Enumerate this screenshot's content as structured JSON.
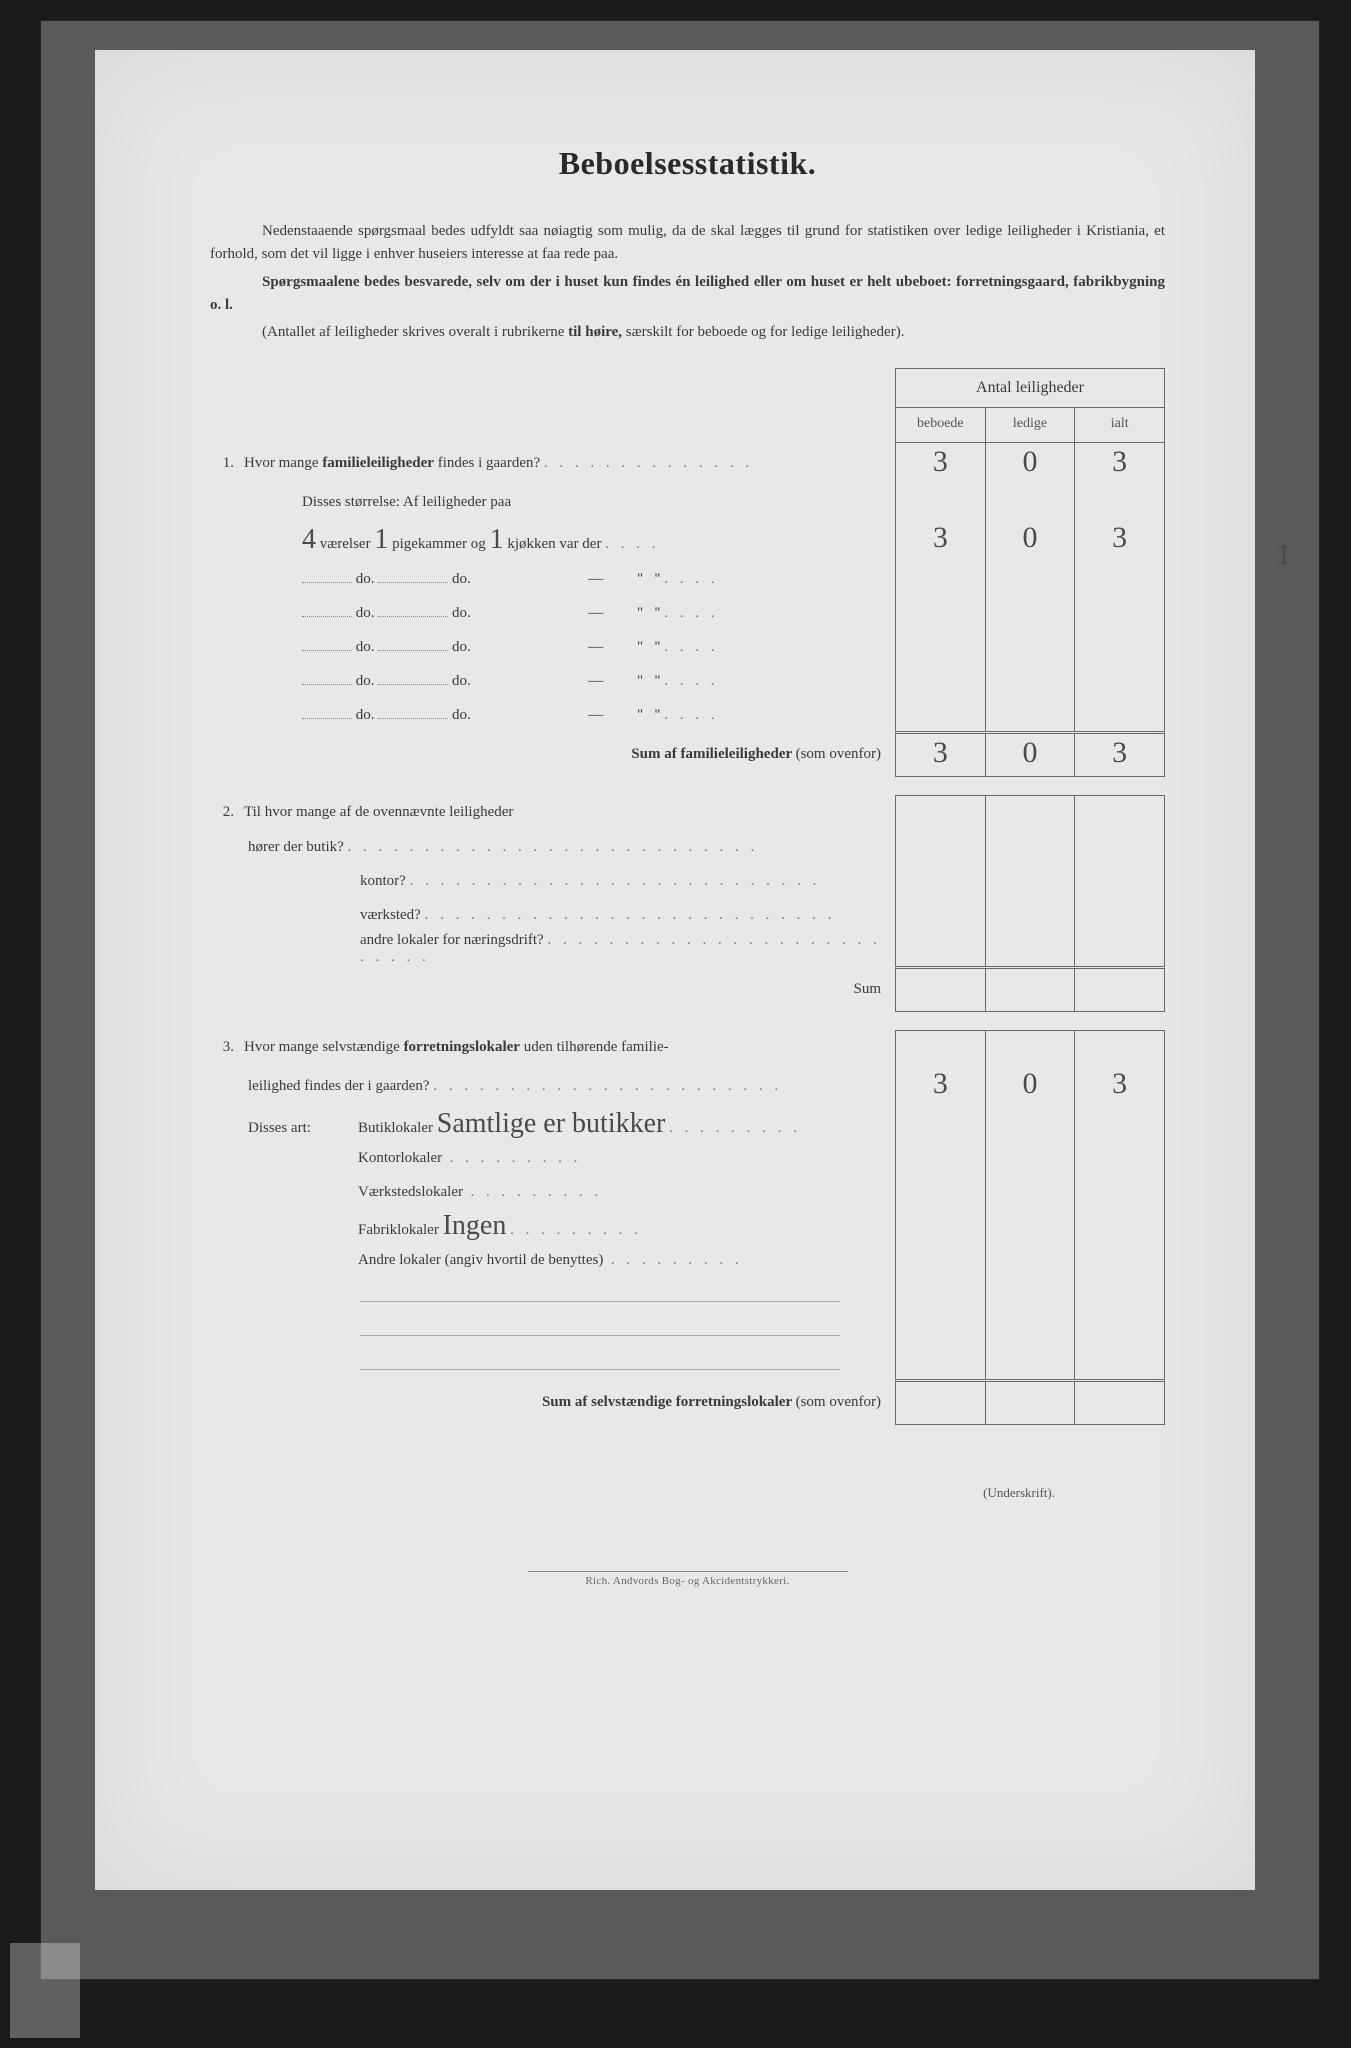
{
  "title": "Beboelsesstatistik.",
  "intro": {
    "p1a": "Nedenstaaende spørgsmaal bedes udfyldt saa nøiagtig som mulig, da de skal lægges til grund for statistiken over  ledige leiligheder i Kristiania, et forhold, som det vil ligge i enhver huseiers interesse at faa rede paa.",
    "p2a": "Spørgsmaalene bedes besvarede, selv om der i huset kun findes én leilighed eller om huset er helt ubeboet: forretningsgaard, fabrikbygning o. l.",
    "p3a": "(Antallet af leiligheder skrives overalt i rubrikerne ",
    "p3b": "til høire,",
    "p3c": " særskilt for beboede og for ledige leiligheder)."
  },
  "table_header": {
    "title": "Antal leiligheder",
    "cols": [
      "beboede",
      "ledige",
      "ialt"
    ]
  },
  "q1": {
    "num": "1.",
    "text": "Hvor mange ",
    "bold": "familieleiligheder",
    "text2": " findes i gaarden?",
    "vals": [
      "3",
      "0",
      "3"
    ],
    "size_label": "Disses størrelse:   Af leiligheder paa",
    "row1": {
      "vaer": "4",
      "pige": "1",
      "kjok": "1",
      "vals": [
        "3",
        "0",
        "3"
      ]
    },
    "do_rows": [
      {
        "v": "",
        "p": "",
        "k": "—",
        "vals": [
          "",
          "",
          ""
        ]
      },
      {
        "v": "",
        "p": "",
        "k": "—",
        "vals": [
          "",
          "",
          ""
        ]
      },
      {
        "v": "",
        "p": "",
        "k": "—",
        "vals": [
          "",
          "",
          ""
        ]
      },
      {
        "v": "",
        "p": "",
        "k": "—",
        "vals": [
          "",
          "",
          ""
        ]
      },
      {
        "v": "",
        "p": "",
        "k": "—",
        "vals": [
          "",
          "",
          ""
        ]
      }
    ],
    "sum_label": "Sum af familieleiligheder ",
    "sum_paren": "(som ovenfor)",
    "sum_vals": [
      "3",
      "0",
      "3"
    ]
  },
  "q2": {
    "num": "2.",
    "text": "Til hvor mange af de ovennævnte leiligheder",
    "rows": [
      {
        "label": "hører der butik?",
        "vals": [
          "",
          "",
          ""
        ]
      },
      {
        "label": "kontor?",
        "vals": [
          "",
          "",
          ""
        ]
      },
      {
        "label": "værksted?",
        "vals": [
          "",
          "",
          ""
        ]
      },
      {
        "label": "andre lokaler for næringsdrift?",
        "vals": [
          "",
          "",
          ""
        ]
      }
    ],
    "sum_label": "Sum",
    "sum_vals": [
      "",
      "",
      ""
    ]
  },
  "q3": {
    "num": "3.",
    "text1": "Hvor mange selvstændige ",
    "bold": "forretningslokaler",
    "text2": " uden tilhørende familie-",
    "text3": "leilighed findes der i gaarden?",
    "vals": [
      "3",
      "0",
      "3"
    ],
    "art_label": "Disses art:",
    "rows": [
      {
        "label": "Butiklokaler",
        "hand": "Samtlige er butikker",
        "vals": [
          "",
          "",
          ""
        ]
      },
      {
        "label": "Kontorlokaler",
        "hand": "",
        "vals": [
          "",
          "",
          ""
        ]
      },
      {
        "label": "Værkstedslokaler",
        "hand": "",
        "vals": [
          "",
          "",
          ""
        ]
      },
      {
        "label": "Fabriklokaler",
        "hand": "Ingen",
        "vals": [
          "",
          "",
          ""
        ]
      },
      {
        "label": "Andre lokaler (angiv hvortil de benyttes)",
        "hand": "",
        "vals": [
          "",
          "",
          ""
        ]
      }
    ],
    "extra_blank_rows": 3,
    "sum_label": "Sum af selvstændige forretningslokaler ",
    "sum_paren": "(som ovenfor)",
    "sum_vals": [
      "",
      "",
      ""
    ]
  },
  "underskrift": "(Underskrift).",
  "printer": "Rich. Andvords Bog- og Akcidentstrykkeri.",
  "margin_mark": "1",
  "colors": {
    "page_bg": "#e8e8e6",
    "frame_bg": "#5a5a5a",
    "outer_bg": "#1a1a1a",
    "text": "#3a3a3a",
    "rule": "#6a6a6a",
    "hand": "#4a4a48"
  }
}
